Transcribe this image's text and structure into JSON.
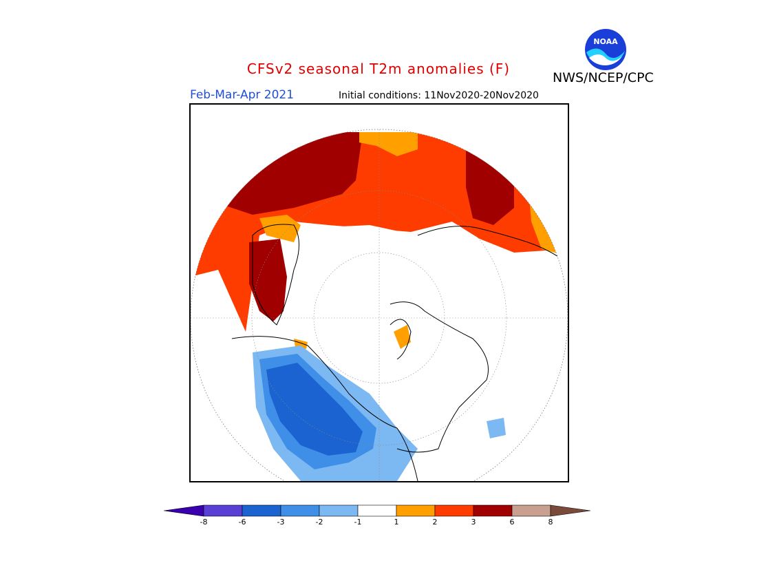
{
  "header": {
    "title": "CFSv2 seasonal T2m anomalies (F)",
    "title_color": "#e00000",
    "agency": "NWS/NCEP/CPC",
    "logo_text": "NOAA"
  },
  "subheader": {
    "season": "Feb-Mar-Apr 2021",
    "season_color": "#1f4fd8",
    "initial_conditions": "Initial conditions: 11Nov2020-20Nov2020"
  },
  "legend": {
    "bins": [
      {
        "color": "#3a00b0",
        "type": "arrow-left"
      },
      {
        "color": "#5a3fd4"
      },
      {
        "color": "#1a63d0"
      },
      {
        "color": "#3f8fe8"
      },
      {
        "color": "#7cb8f2"
      },
      {
        "color": "#ffffff"
      },
      {
        "color": "#ff9f00"
      },
      {
        "color": "#ff3c00"
      },
      {
        "color": "#a00000"
      },
      {
        "color": "#c9a090"
      },
      {
        "color": "#7a4a3a",
        "type": "arrow-right"
      }
    ],
    "labels": [
      "-8",
      "-6",
      "-3",
      "-2",
      "-1",
      "1",
      "2",
      "3",
      "6",
      "8"
    ]
  }
}
